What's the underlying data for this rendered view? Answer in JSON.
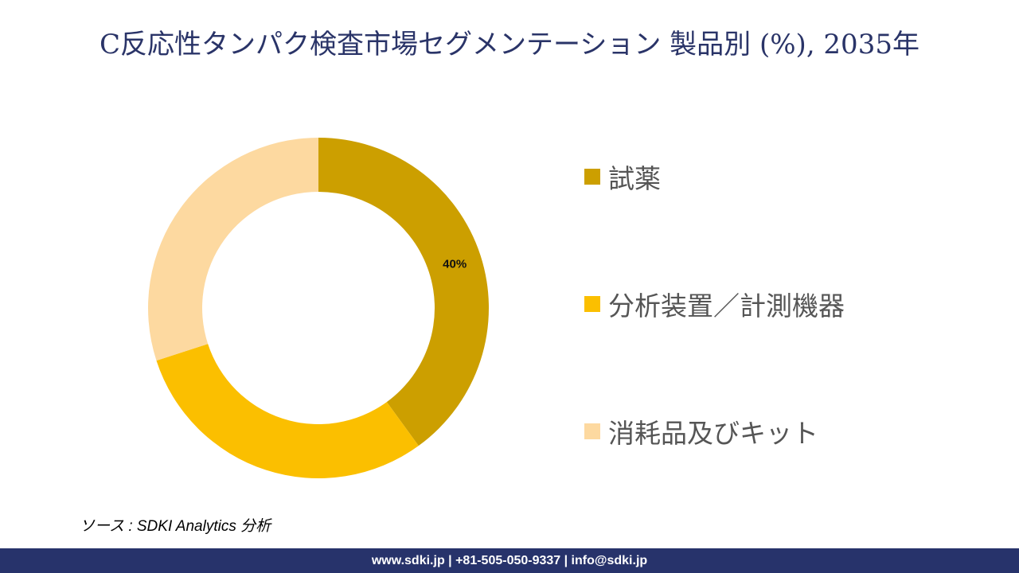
{
  "title": "C反応性タンパク検査市場セグメンテーション 製品別 (%), 2035年",
  "chart_data": {
    "type": "pie",
    "donut": true,
    "title": "C反応性タンパク検査市場セグメンテーション 製品別 (%), 2035年",
    "categories": [
      "試薬",
      "分析装置／計測機器",
      "消耗品及びキット"
    ],
    "values": [
      40,
      30,
      30
    ],
    "data_labels": [
      "40%",
      "",
      ""
    ],
    "colors": [
      "#cc9f00",
      "#fbbf00",
      "#fdd9a0"
    ],
    "legend_placement": "right"
  },
  "source": "ソース : SDKI Analytics 分析",
  "footer": "www.sdki.jp | +81-505-050-9337 | info@sdki.jp"
}
